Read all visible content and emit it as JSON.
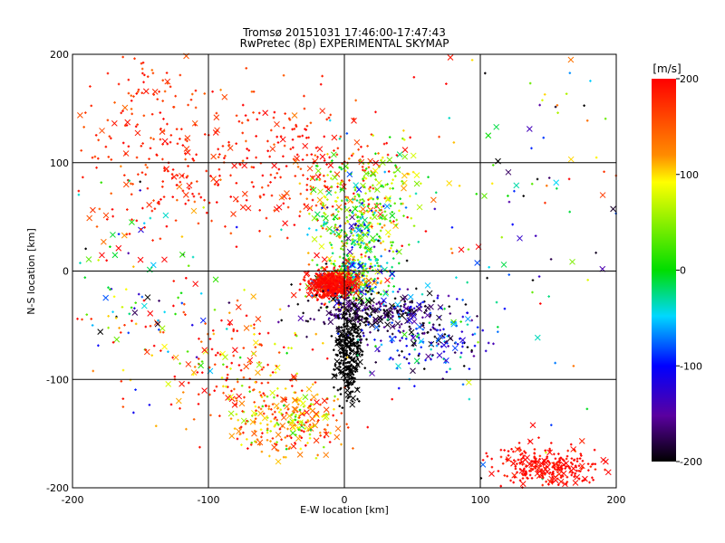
{
  "chart_data": {
    "type": "scatter",
    "title": "Tromsø 20151031 17:46:00-17:47:43",
    "subtitle": "RwPretec (8p) EXPERIMENTAL SKYMAP",
    "xlabel": "E-W location [km]",
    "ylabel": "N-S location [km]",
    "xlim": [
      -200,
      200
    ],
    "ylim": [
      -200,
      200
    ],
    "xticks": [
      "-200",
      "-100",
      "0",
      "100",
      "200"
    ],
    "yticks": [
      "-200",
      "-100",
      "0",
      "100",
      "200"
    ],
    "grid": true,
    "markers": [
      "cross",
      "x"
    ],
    "colorbar": {
      "label": "[m/s]",
      "range": [
        -200,
        200
      ],
      "ticks": [
        "200",
        "100",
        "0",
        "-100",
        "-200"
      ],
      "colormap": "rainbow (black-purple-blue-cyan-green-yellow-orange-red)"
    },
    "clusters": [
      {
        "x": -120,
        "y": 95,
        "sx": 45,
        "sy": 35,
        "vel": 185,
        "spread": 20
      },
      {
        "x": -25,
        "y": 100,
        "sx": 30,
        "sy": 30,
        "vel": 180,
        "spread": 25
      },
      {
        "x": 15,
        "y": 70,
        "sx": 22,
        "sy": 25,
        "vel": 60,
        "spread": 60
      },
      {
        "x": 10,
        "y": 35,
        "sx": 15,
        "sy": 20,
        "vel": 0,
        "spread": 70
      },
      {
        "x": 5,
        "y": -10,
        "sx": 12,
        "sy": 10,
        "vel": 10,
        "spread": 110
      },
      {
        "x": -10,
        "y": -12,
        "sx": 8,
        "sy": 6,
        "vel": 195,
        "spread": 10
      },
      {
        "x": 20,
        "y": -38,
        "sx": 25,
        "sy": 8,
        "vel": -180,
        "spread": 25
      },
      {
        "x": 3,
        "y": -75,
        "sx": 5,
        "sy": 20,
        "vel": -210,
        "spread": 5
      },
      {
        "x": -40,
        "y": -140,
        "sx": 20,
        "sy": 15,
        "vel": 120,
        "spread": 50
      },
      {
        "x": -140,
        "y": 140,
        "sx": 40,
        "sy": 40,
        "vel": 175,
        "spread": 20
      },
      {
        "x": 140,
        "y": 60,
        "sx": 50,
        "sy": 90,
        "vel": -20,
        "spread": 150
      },
      {
        "x": 60,
        "y": -60,
        "sx": 25,
        "sy": 20,
        "vel": -120,
        "spread": 60
      },
      {
        "x": 150,
        "y": -180,
        "sx": 20,
        "sy": 10,
        "vel": 195,
        "spread": 10
      },
      {
        "x": -150,
        "y": -30,
        "sx": 40,
        "sy": 50,
        "vel": 50,
        "spread": 150
      },
      {
        "x": -80,
        "y": -90,
        "sx": 30,
        "sy": 30,
        "vel": 150,
        "spread": 60
      }
    ]
  }
}
